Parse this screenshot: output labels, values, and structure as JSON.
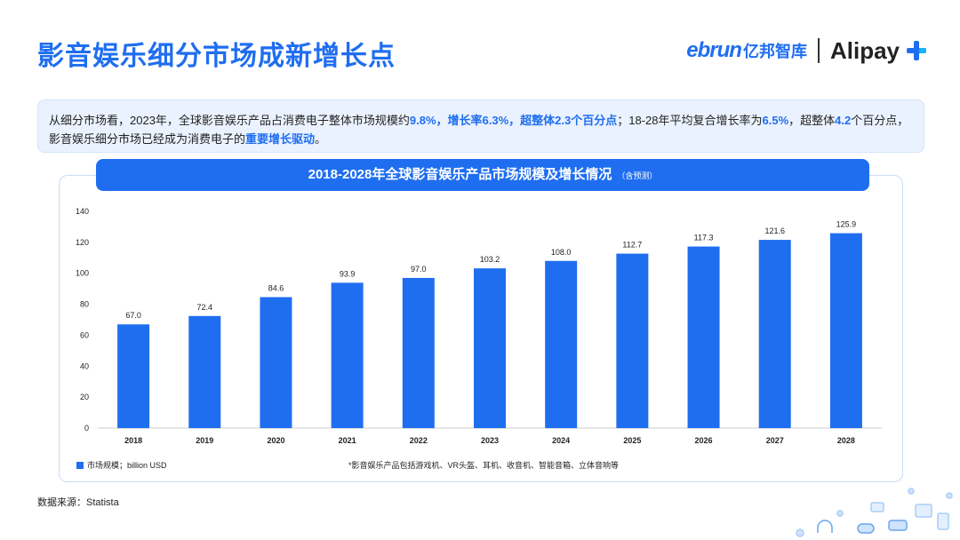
{
  "title": "影音娱乐细分市场成新增长点",
  "logo": {
    "ebrun": "ebrun",
    "ebrun_cn": "亿邦智库",
    "alipay": "Alipay"
  },
  "summary": {
    "p1": "从细分市场看，2023年，全球影音娱乐产品占消费电子整体市场规模约",
    "h1": "9.8%，增长率6.3%，超整体2.3个百分点",
    "p2": "；18-28年平均复合增长率为",
    "h2": "6.5%",
    "p3": "，超整体",
    "h3": "4.2",
    "p4": "个百分点，影音娱乐细分市场已经成为消费电子的",
    "h4": "重要增长驱动",
    "p5": "。"
  },
  "chart_header": {
    "title": "2018-2028年全球影音娱乐产品市场规模及增长情况",
    "note": "（含预测）"
  },
  "legend_label": "市场规模；billion USD",
  "footnote": "*影音娱乐产品包括游戏机、VR头盔、耳机、收音机、智能音箱、立体音响等",
  "source": "数据来源：Statista",
  "colors": {
    "accent": "#1f6ef0"
  },
  "icons": [
    "gamepad-icon",
    "headphones-icon",
    "vr-headset-icon",
    "radio-icon",
    "speaker-icon"
  ],
  "chart_data": {
    "type": "bar",
    "categories": [
      "2018",
      "2019",
      "2020",
      "2021",
      "2022",
      "2023",
      "2024",
      "2025",
      "2026",
      "2027",
      "2028"
    ],
    "series": [
      {
        "name": "市场规模；billion USD",
        "values": [
          67.0,
          72.4,
          84.6,
          93.9,
          97.0,
          103.2,
          108.0,
          112.7,
          117.3,
          121.6,
          125.9
        ]
      }
    ],
    "ylim": [
      0,
      140
    ],
    "yticks": [
      0,
      20,
      40,
      60,
      80,
      100,
      120,
      140
    ],
    "legend": "bottom-left",
    "grid": false
  }
}
